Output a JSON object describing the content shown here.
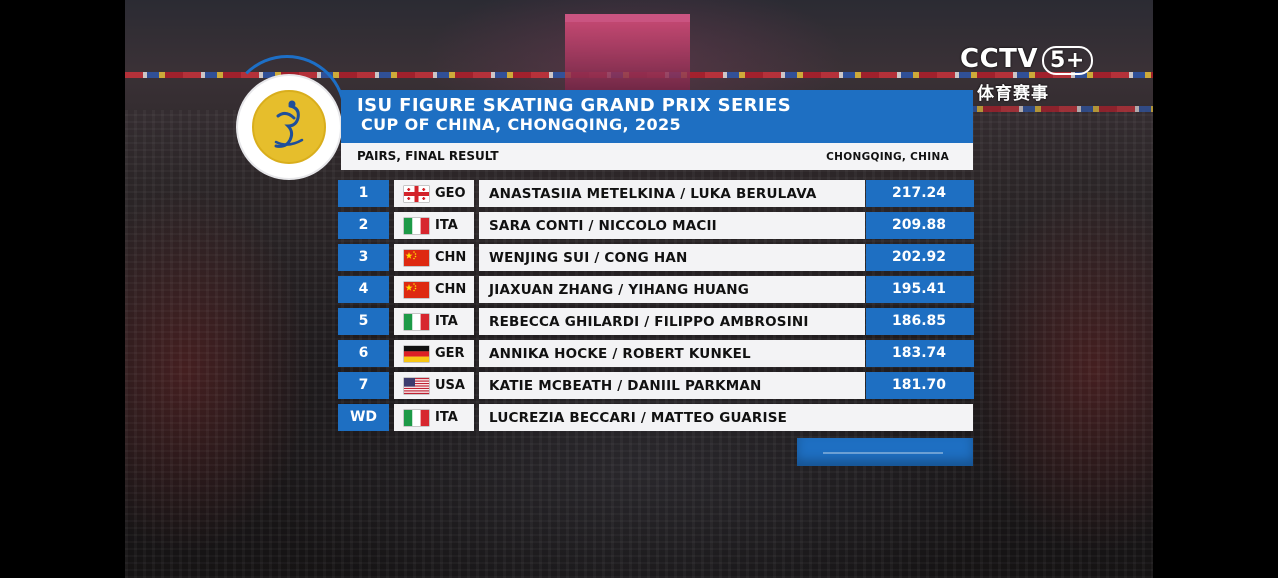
{
  "broadcaster": {
    "logo_text": "CCTV",
    "channel": "5+",
    "sub_text": "体育赛事"
  },
  "header": {
    "title_line1": "ISU FIGURE SKATING GRAND PRIX SERIES",
    "title_line2": "CUP OF CHINA, CHONGQING, 2025",
    "event_label": "PAIRS, FINAL RESULT",
    "location": "CHONGQING, CHINA"
  },
  "results": [
    {
      "rank": "1",
      "nation": "GEO",
      "flag": "georgia-flag-icon",
      "names": "ANASTASIIA METELKINA / LUKA BERULAVA",
      "score": "217.24"
    },
    {
      "rank": "2",
      "nation": "ITA",
      "flag": "italy-flag-icon",
      "names": "SARA CONTI / NICCOLO MACII",
      "score": "209.88"
    },
    {
      "rank": "3",
      "nation": "CHN",
      "flag": "china-flag-icon",
      "names": "WENJING SUI / CONG HAN",
      "score": "202.92"
    },
    {
      "rank": "4",
      "nation": "CHN",
      "flag": "china-flag-icon",
      "names": "JIAXUAN ZHANG / YIHANG HUANG",
      "score": "195.41"
    },
    {
      "rank": "5",
      "nation": "ITA",
      "flag": "italy-flag-icon",
      "names": "REBECCA GHILARDI / FILIPPO AMBROSINI",
      "score": "186.85"
    },
    {
      "rank": "6",
      "nation": "GER",
      "flag": "germany-flag-icon",
      "names": "ANNIKA HOCKE / ROBERT KUNKEL",
      "score": "183.74"
    },
    {
      "rank": "7",
      "nation": "USA",
      "flag": "usa-flag-icon",
      "names": "KATIE MCBEATH / DANIIL PARKMAN",
      "score": "181.70"
    },
    {
      "rank": "WD",
      "nation": "ITA",
      "flag": "italy-flag-icon",
      "names": "LUCREZIA BECCARI / MATTEO GUARISE",
      "score": ""
    }
  ],
  "colors": {
    "accent_blue": "#1e6fc2",
    "row_bg": "#f3f3f5",
    "logo_gold": "#e6be2c"
  }
}
